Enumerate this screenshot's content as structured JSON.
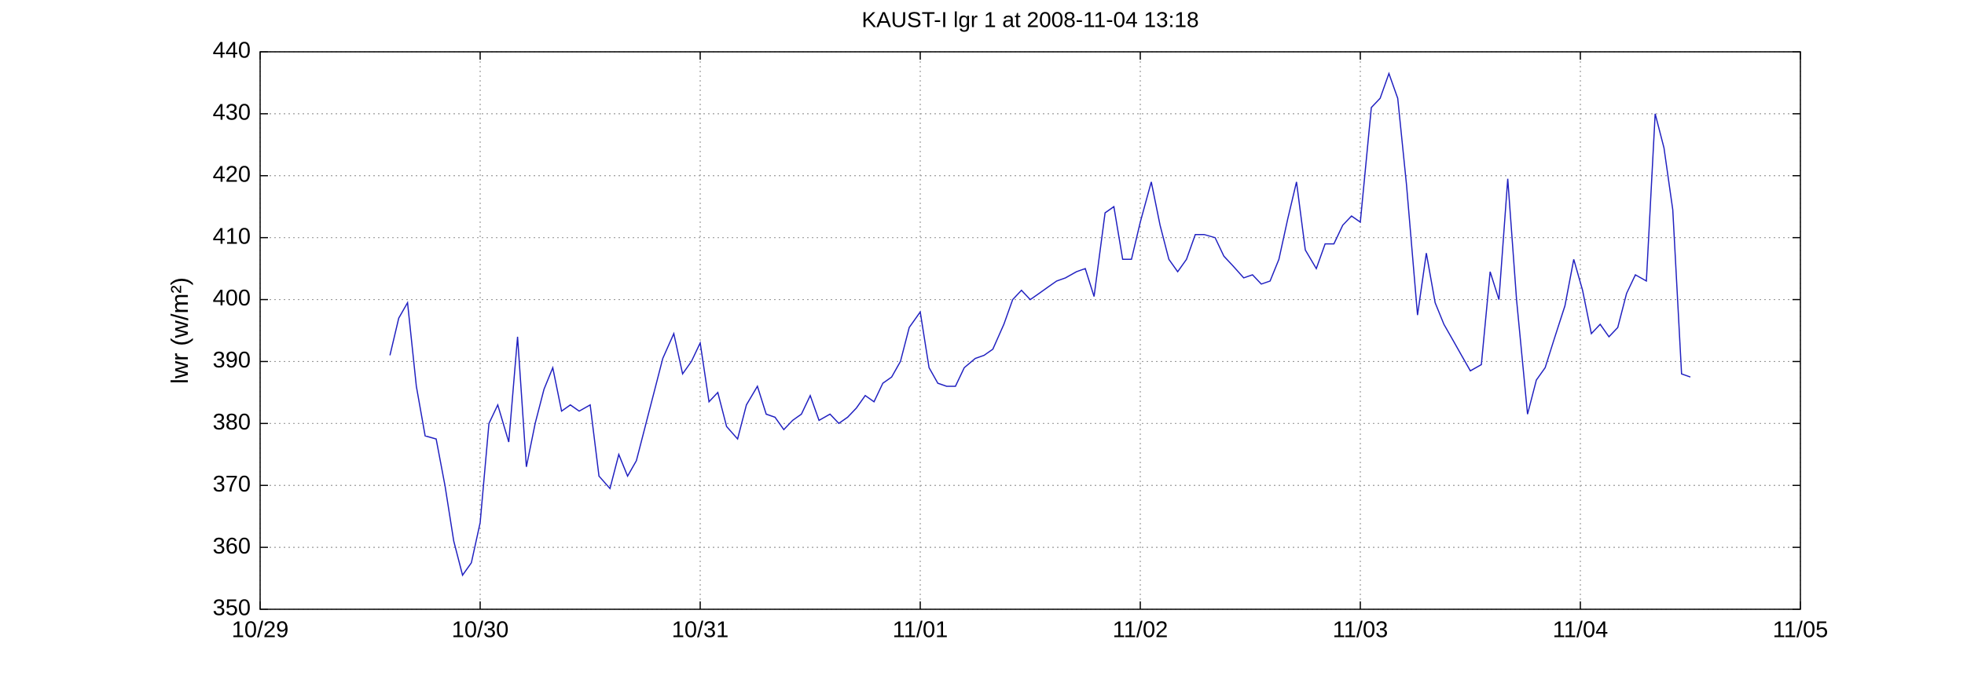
{
  "chart_data": {
    "type": "line",
    "title": "KAUST-I lgr 1 at 2008-11-04 13:18",
    "y_label": "lwr (w/m²)",
    "x": [
      0.59,
      0.63,
      0.67,
      0.71,
      0.75,
      0.8,
      0.84,
      0.88,
      0.92,
      0.96,
      1.0,
      1.04,
      1.08,
      1.13,
      1.17,
      1.21,
      1.25,
      1.29,
      1.33,
      1.37,
      1.41,
      1.45,
      1.5,
      1.54,
      1.59,
      1.63,
      1.67,
      1.71,
      1.75,
      1.79,
      1.83,
      1.88,
      1.92,
      1.96,
      2.0,
      2.04,
      2.08,
      2.12,
      2.17,
      2.21,
      2.26,
      2.3,
      2.34,
      2.38,
      2.42,
      2.46,
      2.5,
      2.54,
      2.59,
      2.63,
      2.67,
      2.71,
      2.75,
      2.79,
      2.83,
      2.87,
      2.91,
      2.95,
      3.0,
      3.04,
      3.08,
      3.12,
      3.16,
      3.2,
      3.25,
      3.29,
      3.33,
      3.38,
      3.42,
      3.46,
      3.5,
      3.54,
      3.58,
      3.62,
      3.66,
      3.71,
      3.75,
      3.79,
      3.84,
      3.88,
      3.92,
      3.96,
      4.0,
      4.05,
      4.09,
      4.13,
      4.17,
      4.21,
      4.25,
      4.29,
      4.34,
      4.38,
      4.42,
      4.47,
      4.51,
      4.55,
      4.59,
      4.63,
      4.67,
      4.71,
      4.75,
      4.8,
      4.84,
      4.88,
      4.92,
      4.96,
      5.0,
      5.05,
      5.09,
      5.13,
      5.17,
      5.21,
      5.26,
      5.3,
      5.34,
      5.38,
      5.42,
      5.46,
      5.5,
      5.55,
      5.59,
      5.63,
      5.67,
      5.71,
      5.76,
      5.8,
      5.84,
      5.88,
      5.93,
      5.97,
      6.01,
      6.05,
      6.09,
      6.13,
      6.17,
      6.21,
      6.25,
      6.3,
      6.34,
      6.38,
      6.42,
      6.46,
      6.5
    ],
    "series": [
      {
        "color": "#2020c0",
        "values": [
          391,
          397,
          399.5,
          386,
          378,
          377.5,
          370,
          361,
          355.5,
          357.5,
          364,
          380,
          383,
          377,
          394,
          373,
          380,
          385.5,
          389,
          382,
          383,
          382,
          383,
          371.5,
          369.5,
          375,
          371.5,
          374,
          379.5,
          385,
          390.5,
          394.5,
          388,
          390,
          393,
          383.5,
          385,
          379.5,
          377.5,
          383,
          386,
          381.5,
          381,
          379,
          380.5,
          381.5,
          384.5,
          380.5,
          381.5,
          380,
          381,
          382.5,
          384.5,
          383.5,
          386.5,
          387.5,
          390,
          395.5,
          398,
          389,
          386.5,
          386,
          386,
          389,
          390.5,
          391,
          392,
          396,
          400,
          401.5,
          400,
          401,
          402,
          403,
          403.5,
          404.5,
          405,
          400.5,
          414,
          415,
          406.5,
          406.5,
          412.5,
          419,
          412,
          406.5,
          404.5,
          406.5,
          410.5,
          410.5,
          410,
          407,
          405.5,
          403.5,
          404,
          402.5,
          403,
          406.5,
          413,
          419,
          408,
          405,
          409,
          409,
          412,
          413.5,
          412.5,
          431,
          432.5,
          436.5,
          432.5,
          418.5,
          397.5,
          407.5,
          399.5,
          396,
          393.5,
          391,
          388.5,
          389.5,
          404.5,
          400,
          419.5,
          400,
          381.5,
          387,
          389,
          393.5,
          399,
          406.5,
          401.5,
          394.5,
          396,
          394,
          395.5,
          401,
          404,
          403,
          430,
          424.5,
          414.5,
          388,
          387.5
        ]
      }
    ],
    "xlim": [
      0,
      7
    ],
    "xticks": [
      {
        "value": 0,
        "label": "10/29"
      },
      {
        "value": 1,
        "label": "10/30"
      },
      {
        "value": 2,
        "label": "10/31"
      },
      {
        "value": 3,
        "label": "11/01"
      },
      {
        "value": 4,
        "label": "11/02"
      },
      {
        "value": 5,
        "label": "11/03"
      },
      {
        "value": 6,
        "label": "11/04"
      },
      {
        "value": 7,
        "label": "11/05"
      }
    ],
    "ylim": [
      350,
      440
    ],
    "yticks": [
      350,
      360,
      370,
      380,
      390,
      400,
      410,
      420,
      430,
      440
    ],
    "grid": true
  }
}
